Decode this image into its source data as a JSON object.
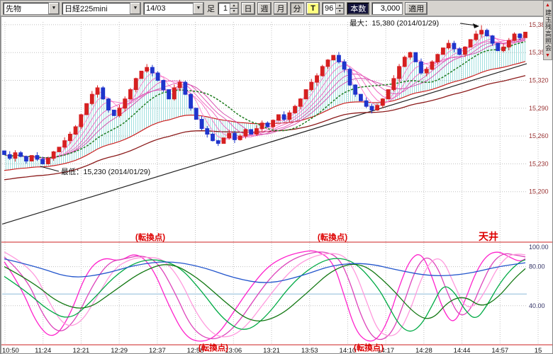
{
  "toolbar": {
    "market_select": "先物",
    "symbol_select": "日経225mini",
    "contract_select": "14/03",
    "bar_label": "足",
    "bar_interval": "1",
    "period_day": "日",
    "period_week": "週",
    "period_month": "月",
    "period_minute": "分",
    "tick_button": "T",
    "count_value": "96",
    "count_label": "本数",
    "bars_value": "3,000",
    "apply_button": "適用"
  },
  "right_tab": {
    "label": "建玉残高照会"
  },
  "colors": {
    "up_candle": "#d62020",
    "down_candle": "#1f35cc",
    "grid": "#c0c0c0",
    "price_label": "#993333",
    "osc_label": "#333366",
    "annotation_red": "#dd0000",
    "cloud_hatch": "#86d6d6",
    "toolbar_bg": "#d6d3ce"
  },
  "chart_data": [
    {
      "type": "candlestick",
      "symbol": "日経225mini 14/03",
      "ylim": [
        15152,
        15383
      ],
      "price_ticks": [
        15380,
        15350,
        15320,
        15290,
        15260,
        15230,
        15200
      ],
      "tick_labels": [
        "15,380",
        "15,350",
        "15,320",
        "15,290",
        "15,260",
        "15,230",
        "15,200"
      ],
      "time_ticks": [
        "10:50",
        "11:24",
        "12:21",
        "12:29",
        "12:37",
        "12:58",
        "13:06",
        "13:21",
        "13:53",
        "14:10",
        "14:17",
        "14:28",
        "14:44",
        "14:57",
        "15"
      ],
      "closes": [
        15240,
        15236,
        15242,
        15238,
        15233,
        15239,
        15235,
        15230,
        15236,
        15243,
        15248,
        15255,
        15262,
        15270,
        15283,
        15295,
        15305,
        15312,
        15300,
        15288,
        15282,
        15290,
        15300,
        15310,
        15322,
        15330,
        15334,
        15328,
        15320,
        15310,
        15300,
        15312,
        15318,
        15305,
        15290,
        15278,
        15268,
        15262,
        15255,
        15252,
        15258,
        15263,
        15256,
        15260,
        15267,
        15262,
        15268,
        15274,
        15270,
        15277,
        15283,
        15278,
        15285,
        15292,
        15300,
        15310,
        15318,
        15325,
        15335,
        15342,
        15347,
        15340,
        15332,
        15315,
        15305,
        15298,
        15292,
        15288,
        15293,
        15300,
        15310,
        15322,
        15335,
        15345,
        15350,
        15340,
        15328,
        15332,
        15340,
        15348,
        15355,
        15360,
        15354,
        15348,
        15356,
        15364,
        15370,
        15374,
        15368,
        15360,
        15352,
        15356,
        15363,
        15370,
        15366,
        15372
      ],
      "annotations": {
        "max": {
          "text": "最大：15,380 (2014/01/29)",
          "value": 15380,
          "date": "2014/01/29"
        },
        "min": {
          "text": "最低：15,230 (2014/01/29)",
          "value": 15230,
          "date": "2014/01/29"
        }
      },
      "overlays": {
        "trend_line": {
          "start": 15165,
          "end": 15338
        },
        "ma_ribbon_periods": [
          2,
          4,
          6,
          8,
          10,
          12
        ],
        "ribbon_colors": [
          "#ff9ad5",
          "#ff7ccb",
          "#f76ec4",
          "#ee5fbc",
          "#e052b4",
          "#d246aa"
        ],
        "green_ma_period": 16,
        "red_ma": {
          "alpha": 0.05,
          "seed": 15222,
          "color": "#cc2222"
        },
        "darkred_ma": {
          "alpha": 0.032,
          "seed": 15212,
          "color": "#8b1a1a"
        }
      }
    },
    {
      "type": "line",
      "name": "oscillator",
      "ylim": [
        0,
        100
      ],
      "axis_labels": [
        "100.00",
        "80.00",
        "40.00"
      ],
      "axis_values": [
        100,
        80,
        40
      ],
      "gridlines": [
        80,
        40
      ],
      "center_line": 52,
      "series": [
        {
          "name": "stoch-fast",
          "color": "#ff22cc",
          "points": [
            [
              0,
              85
            ],
            [
              3,
              60
            ],
            [
              6,
              20
            ],
            [
              9,
              5
            ],
            [
              12,
              30
            ],
            [
              15,
              75
            ],
            [
              18,
              90
            ],
            [
              21,
              85
            ],
            [
              24,
              95
            ],
            [
              27,
              80
            ],
            [
              30,
              40
            ],
            [
              33,
              8
            ],
            [
              36,
              2
            ],
            [
              39,
              10
            ],
            [
              42,
              35
            ],
            [
              45,
              60
            ],
            [
              48,
              80
            ],
            [
              51,
              90
            ],
            [
              54,
              95
            ],
            [
              57,
              97
            ],
            [
              60,
              85
            ],
            [
              62,
              50
            ],
            [
              64,
              15
            ],
            [
              66,
              3
            ],
            [
              68,
              5
            ],
            [
              70,
              25
            ],
            [
              72,
              60
            ],
            [
              74,
              88
            ],
            [
              76,
              95
            ],
            [
              78,
              70
            ],
            [
              80,
              35
            ],
            [
              82,
              20
            ],
            [
              84,
              45
            ],
            [
              86,
              75
            ],
            [
              88,
              92
            ],
            [
              90,
              96
            ],
            [
              92,
              90
            ],
            [
              94,
              85
            ],
            [
              95,
              88
            ]
          ]
        },
        {
          "name": "stoch-mid",
          "color": "#dd44bb",
          "points": [
            [
              0,
              90
            ],
            [
              4,
              70
            ],
            [
              7,
              30
            ],
            [
              10,
              10
            ],
            [
              13,
              25
            ],
            [
              16,
              60
            ],
            [
              19,
              85
            ],
            [
              22,
              88
            ],
            [
              25,
              92
            ],
            [
              28,
              85
            ],
            [
              31,
              55
            ],
            [
              34,
              18
            ],
            [
              37,
              5
            ],
            [
              40,
              8
            ],
            [
              43,
              25
            ],
            [
              46,
              50
            ],
            [
              49,
              72
            ],
            [
              52,
              86
            ],
            [
              55,
              93
            ],
            [
              58,
              96
            ],
            [
              61,
              90
            ],
            [
              63,
              65
            ],
            [
              65,
              30
            ],
            [
              67,
              8
            ],
            [
              69,
              4
            ],
            [
              71,
              15
            ],
            [
              73,
              45
            ],
            [
              75,
              78
            ],
            [
              77,
              92
            ],
            [
              79,
              80
            ],
            [
              81,
              50
            ],
            [
              83,
              28
            ],
            [
              85,
              35
            ],
            [
              87,
              62
            ],
            [
              89,
              85
            ],
            [
              91,
              94
            ],
            [
              93,
              92
            ],
            [
              95,
              90
            ]
          ]
        },
        {
          "name": "stoch-slow-pink",
          "color": "#ff99dd",
          "points": [
            [
              0,
              95
            ],
            [
              5,
              80
            ],
            [
              8,
              45
            ],
            [
              11,
              18
            ],
            [
              14,
              22
            ],
            [
              17,
              50
            ],
            [
              20,
              78
            ],
            [
              23,
              88
            ],
            [
              26,
              90
            ],
            [
              29,
              88
            ],
            [
              32,
              68
            ],
            [
              35,
              32
            ],
            [
              38,
              10
            ],
            [
              41,
              7
            ],
            [
              44,
              18
            ],
            [
              47,
              40
            ],
            [
              50,
              62
            ],
            [
              53,
              80
            ],
            [
              56,
              90
            ],
            [
              59,
              94
            ],
            [
              62,
              92
            ],
            [
              64,
              75
            ],
            [
              66,
              45
            ],
            [
              68,
              15
            ],
            [
              70,
              8
            ],
            [
              72,
              12
            ],
            [
              74,
              35
            ],
            [
              76,
              68
            ],
            [
              78,
              88
            ],
            [
              80,
              88
            ],
            [
              82,
              62
            ],
            [
              84,
              38
            ],
            [
              86,
              40
            ],
            [
              88,
              58
            ],
            [
              90,
              80
            ],
            [
              92,
              92
            ],
            [
              94,
              93
            ],
            [
              95,
              92
            ]
          ]
        },
        {
          "name": "green-fast",
          "color": "#00aa44",
          "points": [
            [
              0,
              70
            ],
            [
              4,
              55
            ],
            [
              8,
              35
            ],
            [
              12,
              25
            ],
            [
              16,
              45
            ],
            [
              20,
              70
            ],
            [
              24,
              85
            ],
            [
              28,
              88
            ],
            [
              32,
              80
            ],
            [
              36,
              55
            ],
            [
              40,
              25
            ],
            [
              44,
              12
            ],
            [
              48,
              30
            ],
            [
              52,
              60
            ],
            [
              56,
              80
            ],
            [
              60,
              90
            ],
            [
              64,
              85
            ],
            [
              68,
              60
            ],
            [
              70,
              40
            ],
            [
              72,
              20
            ],
            [
              74,
              12
            ],
            [
              76,
              20
            ],
            [
              78,
              40
            ],
            [
              80,
              62
            ],
            [
              82,
              55
            ],
            [
              84,
              35
            ],
            [
              86,
              25
            ],
            [
              88,
              40
            ],
            [
              90,
              60
            ],
            [
              92,
              75
            ],
            [
              94,
              85
            ],
            [
              95,
              87
            ]
          ]
        },
        {
          "name": "green-slow",
          "color": "#117711",
          "points": [
            [
              0,
              80
            ],
            [
              5,
              65
            ],
            [
              10,
              42
            ],
            [
              15,
              35
            ],
            [
              20,
              55
            ],
            [
              25,
              75
            ],
            [
              30,
              85
            ],
            [
              35,
              70
            ],
            [
              40,
              45
            ],
            [
              45,
              22
            ],
            [
              50,
              28
            ],
            [
              55,
              52
            ],
            [
              60,
              78
            ],
            [
              65,
              85
            ],
            [
              70,
              62
            ],
            [
              75,
              30
            ],
            [
              78,
              25
            ],
            [
              81,
              45
            ],
            [
              84,
              50
            ],
            [
              87,
              38
            ],
            [
              90,
              48
            ],
            [
              93,
              68
            ],
            [
              95,
              78
            ]
          ]
        },
        {
          "name": "blue-slow",
          "color": "#2255cc",
          "points": [
            [
              0,
              88
            ],
            [
              6,
              80
            ],
            [
              12,
              68
            ],
            [
              18,
              72
            ],
            [
              24,
              82
            ],
            [
              30,
              86
            ],
            [
              36,
              80
            ],
            [
              42,
              68
            ],
            [
              48,
              62
            ],
            [
              54,
              70
            ],
            [
              60,
              82
            ],
            [
              66,
              84
            ],
            [
              72,
              76
            ],
            [
              78,
              70
            ],
            [
              84,
              72
            ],
            [
              90,
              80
            ],
            [
              95,
              84
            ]
          ]
        }
      ],
      "annotations": {
        "top": [
          {
            "text": "(転換点)",
            "x": 0.27
          },
          {
            "text": "(転換点)",
            "x": 0.6
          },
          {
            "text": "天井",
            "x": 0.882
          }
        ],
        "bottom": [
          {
            "text": "(転換点)",
            "x": 0.385
          },
          {
            "text": "(転換点)",
            "x": 0.665
          }
        ]
      }
    }
  ]
}
